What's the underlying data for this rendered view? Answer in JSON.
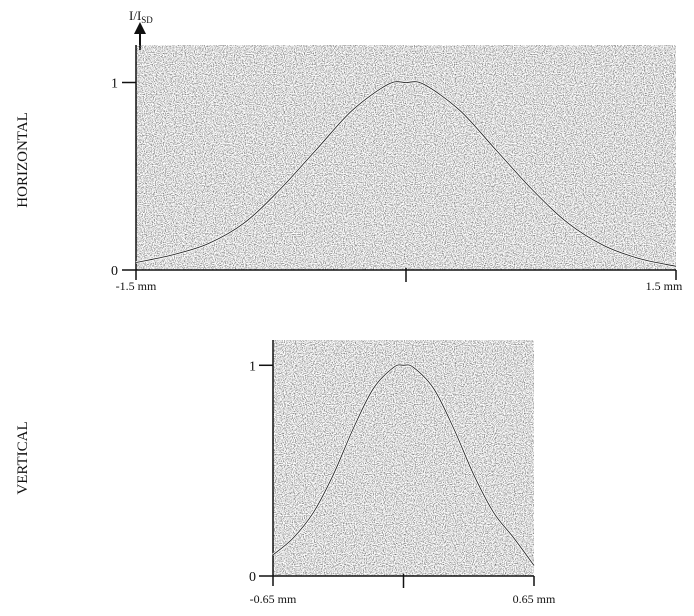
{
  "y_quantity": {
    "main": "I/I",
    "subscript": "SD"
  },
  "chart_data": [
    {
      "type": "line",
      "title": "HORIZONTAL",
      "ylabel": "I/ISD",
      "x_ticks": [
        "-1.5 mm",
        "1.5 mm"
      ],
      "y_ticks": [
        "0",
        "1"
      ],
      "xlim": [
        -1.5,
        1.5
      ],
      "ylim": [
        0,
        1.2
      ],
      "grid": false,
      "x": [
        -1.5,
        -1.3,
        -1.1,
        -0.9,
        -0.7,
        -0.5,
        -0.3,
        -0.1,
        0.0,
        0.1,
        0.3,
        0.5,
        0.7,
        0.9,
        1.1,
        1.3,
        1.5
      ],
      "y": [
        0.04,
        0.08,
        0.14,
        0.25,
        0.43,
        0.64,
        0.85,
        0.99,
        1.0,
        0.99,
        0.85,
        0.64,
        0.43,
        0.25,
        0.13,
        0.06,
        0.02
      ]
    },
    {
      "type": "line",
      "title": "VERTICAL",
      "ylabel": "",
      "x_ticks": [
        "-0.65 mm",
        "0.65 mm"
      ],
      "y_ticks": [
        "0",
        "1"
      ],
      "xlim": [
        -0.65,
        0.65
      ],
      "ylim": [
        0,
        1.12
      ],
      "grid": false,
      "x": [
        -0.65,
        -0.55,
        -0.45,
        -0.35,
        -0.25,
        -0.15,
        -0.05,
        0.0,
        0.05,
        0.15,
        0.25,
        0.35,
        0.45,
        0.55,
        0.65
      ],
      "y": [
        0.1,
        0.18,
        0.3,
        0.48,
        0.7,
        0.89,
        0.99,
        1.0,
        0.99,
        0.89,
        0.7,
        0.48,
        0.3,
        0.18,
        0.05
      ]
    }
  ]
}
